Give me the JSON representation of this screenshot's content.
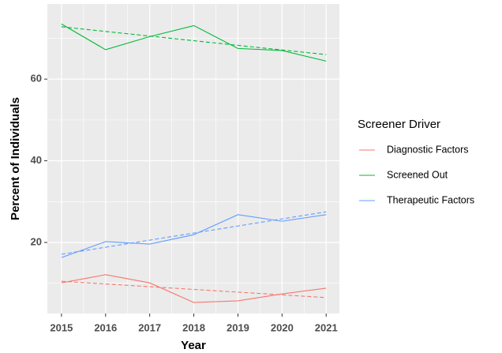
{
  "chart_data": {
    "type": "line",
    "x_label": "Year",
    "y_label": "Percent of Individuals",
    "legend_title": "Screener Driver",
    "legend": "right",
    "x": [
      2015,
      2016,
      2017,
      2018,
      2019,
      2020,
      2021
    ],
    "xlim": [
      2014.68,
      2021.3
    ],
    "xticks": [
      2015,
      2016,
      2017,
      2018,
      2019,
      2020,
      2021
    ],
    "ylim": [
      2.6,
      78.4
    ],
    "yticks": [
      20,
      40,
      60
    ],
    "grid": true,
    "series": [
      {
        "name": "Diagnostic Factors",
        "color": "#F8766D",
        "values": [
          10.1,
          12.1,
          10.1,
          5.3,
          5.7,
          7.4,
          8.8
        ],
        "trend": [
          10.5,
          6.5
        ]
      },
      {
        "name": "Screened Out",
        "color": "#00BA38",
        "values": [
          73.5,
          67.2,
          70.4,
          73.1,
          67.5,
          67.0,
          64.4
        ],
        "trend": [
          72.8,
          66.0
        ]
      },
      {
        "name": "Therapeutic Factors",
        "color": "#619CFF",
        "values": [
          16.3,
          20.2,
          19.6,
          21.9,
          26.8,
          25.2,
          26.8
        ],
        "trend": [
          17.1,
          27.5
        ]
      }
    ]
  }
}
